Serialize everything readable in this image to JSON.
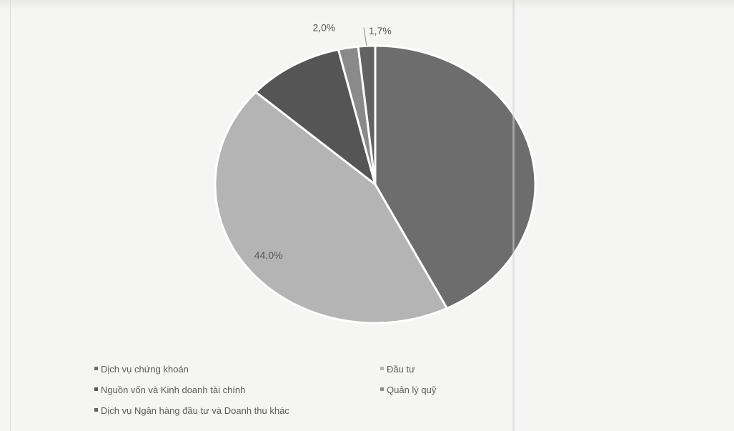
{
  "chart_data": {
    "type": "pie",
    "title": "",
    "colors": [
      "#6d6d6d",
      "#b4b4b4",
      "#555555",
      "#8a8a8a",
      "#626262"
    ],
    "slices": [
      {
        "name": "Dịch vụ chứng khoán",
        "value": 42.6,
        "label": ""
      },
      {
        "name": "Đầu tư",
        "value": 44.0,
        "label": "44,0%"
      },
      {
        "name": "Nguồn vốn và Kinh doanh tài chính",
        "value": 9.7,
        "label": ""
      },
      {
        "name": "Quản lý quỹ",
        "value": 2.0,
        "label": "2,0%"
      },
      {
        "name": "Dịch vụ Ngân hàng đầu tư và Doanh thu khác",
        "value": 1.7,
        "label": "1,7%"
      }
    ],
    "legend_position": "bottom"
  }
}
